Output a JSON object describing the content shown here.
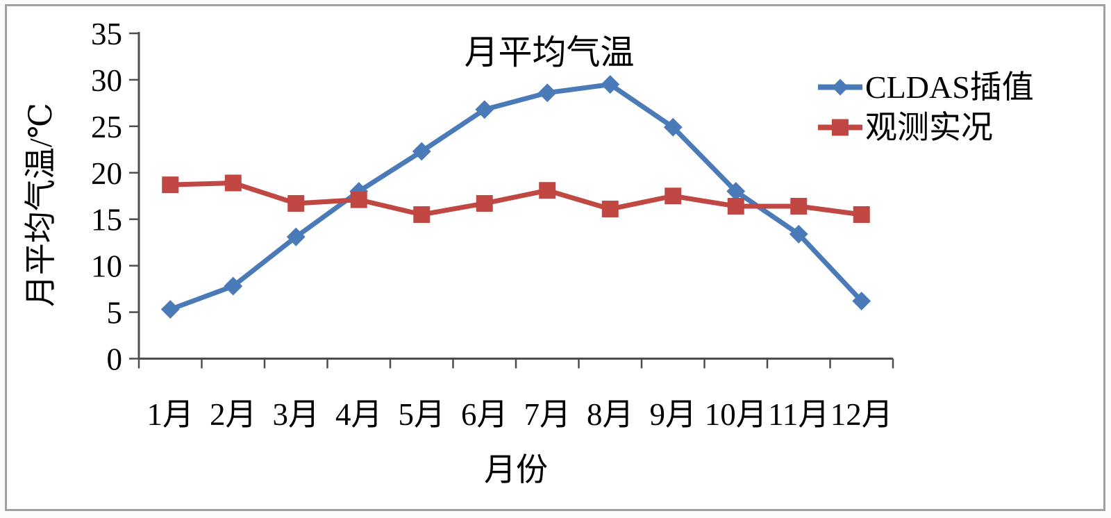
{
  "chart_data": {
    "type": "line",
    "title": "月平均气温",
    "xlabel": "月份",
    "ylabel": "月平均气温/℃",
    "categories": [
      "1月",
      "2月",
      "3月",
      "4月",
      "5月",
      "6月",
      "7月",
      "8月",
      "9月",
      "10月",
      "11月",
      "12月"
    ],
    "series": [
      {
        "name": "CLDAS插值",
        "marker": "diamond",
        "color": "#4a7ab8",
        "values": [
          5.3,
          7.8,
          13.1,
          18.0,
          22.3,
          26.8,
          28.6,
          29.5,
          24.9,
          18.0,
          13.4,
          6.2
        ]
      },
      {
        "name": "观测实况",
        "marker": "square",
        "color": "#c14743",
        "values": [
          18.7,
          18.9,
          16.7,
          17.1,
          15.5,
          16.7,
          18.1,
          16.1,
          17.5,
          16.4,
          16.4,
          15.5
        ]
      }
    ],
    "ylim": [
      0,
      35
    ],
    "ytick_step": 5,
    "grid": false,
    "legend_position": "upper-right",
    "axis_color": "#4d4d4d",
    "text_color": "#000000"
  }
}
